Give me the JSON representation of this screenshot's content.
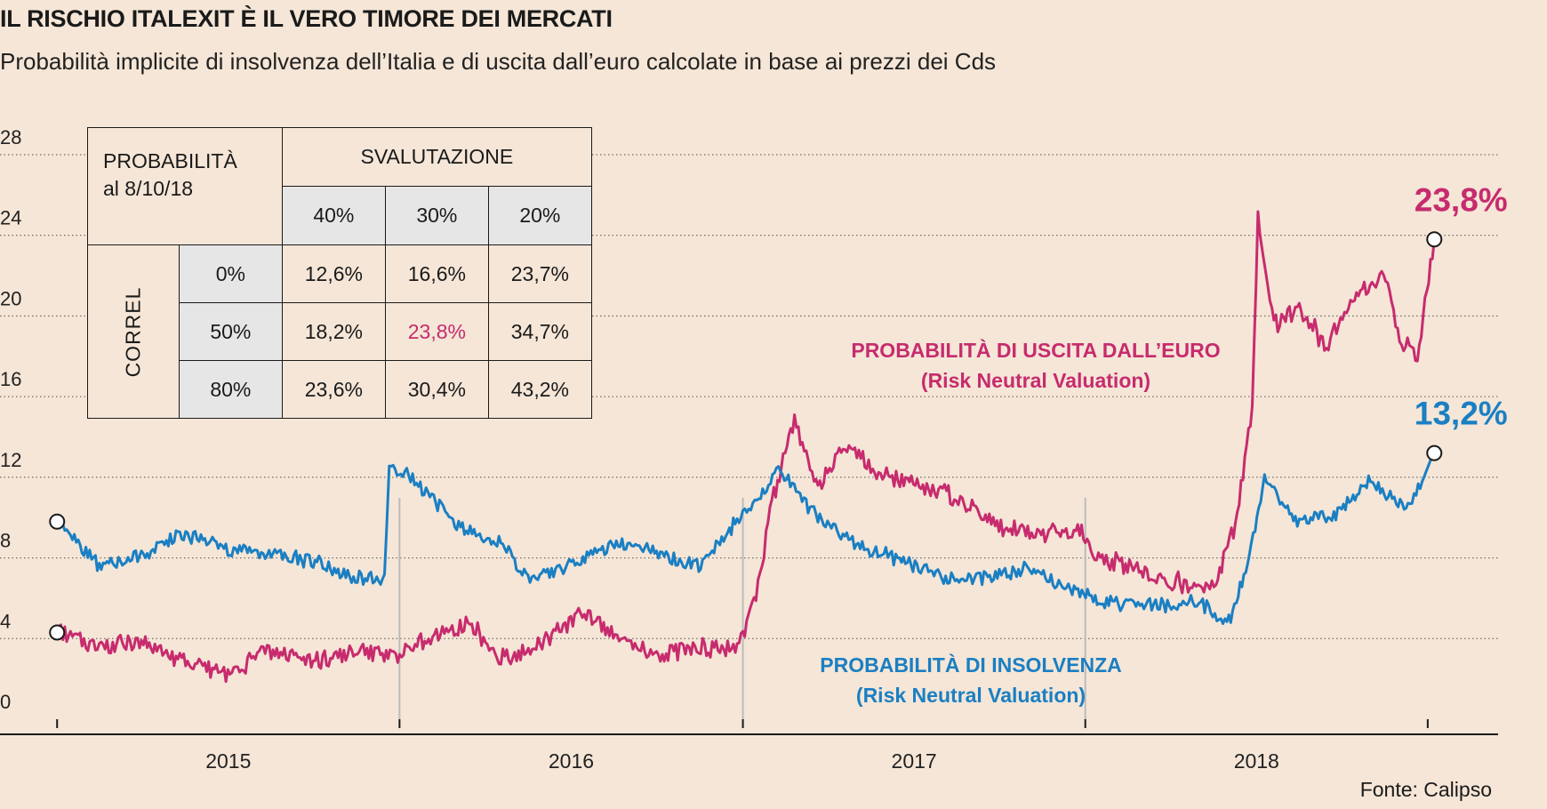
{
  "header": {
    "title": "IL RISCHIO ITALEXIT È IL VERO TIMORE DEI MERCATI",
    "subtitle": "Probabilità implicite di insolvenza dell’Italia e di uscita dall’euro calcolate in base ai prezzi dei Cds"
  },
  "source": "Fonte: Calipso",
  "table": {
    "corner_line1": "PROBABILITÀ",
    "corner_line2": "al 8/10/18",
    "group_header": "SVALUTAZIONE",
    "col_headers": [
      "40%",
      "30%",
      "20%"
    ],
    "row_group": "CORREL",
    "rows": [
      {
        "label": "0%",
        "values": [
          "12,6%",
          "16,6%",
          "23,7%"
        ]
      },
      {
        "label": "50%",
        "values": [
          "18,2%",
          "23,8%",
          "34,7%"
        ]
      },
      {
        "label": "80%",
        "values": [
          "23,6%",
          "30,4%",
          "43,2%"
        ]
      }
    ],
    "highlight_color": "#c72b6e"
  },
  "colors": {
    "exit": "#c72b6e",
    "default": "#1a7fc3",
    "background": "#f5e6d7"
  },
  "chart_data": {
    "type": "line",
    "x_axis": {
      "ticks": [
        "2015",
        "2016",
        "2017",
        "2018"
      ]
    },
    "y_axis": {
      "ticks": [
        "0",
        "4",
        "8",
        "12",
        "16",
        "20",
        "24",
        "28"
      ],
      "range": [
        0,
        28
      ]
    },
    "grid": "horizontal dotted",
    "series": [
      {
        "name": "PROBABILITÀ DI USCITA DALL’EURO",
        "name_line2": "(Risk Neutral Valuation)",
        "color": "#c72b6e",
        "end_label": "23,8%",
        "points": [
          [
            "2014-10-01",
            4.3
          ],
          [
            "2014-11-15",
            3.6
          ],
          [
            "2015-01-01",
            3.8
          ],
          [
            "2015-02-15",
            2.8
          ],
          [
            "2015-04-01",
            2.3
          ],
          [
            "2015-05-15",
            3.5
          ],
          [
            "2015-07-01",
            2.8
          ],
          [
            "2015-08-15",
            3.4
          ],
          [
            "2015-09-25",
            3.2
          ],
          [
            "2015-11-01",
            4.0
          ],
          [
            "2015-12-15",
            4.8
          ],
          [
            "2016-01-15",
            3.0
          ],
          [
            "2016-03-01",
            3.8
          ],
          [
            "2016-04-15",
            5.4
          ],
          [
            "2016-05-20",
            4.0
          ],
          [
            "2016-07-01",
            3.3
          ],
          [
            "2016-08-15",
            3.5
          ],
          [
            "2016-09-25",
            3.6
          ],
          [
            "2016-10-15",
            6.0
          ],
          [
            "2016-11-01",
            10.8
          ],
          [
            "2016-11-25",
            14.8
          ],
          [
            "2016-12-20",
            11.5
          ],
          [
            "2017-01-20",
            13.5
          ],
          [
            "2017-03-01",
            12.0
          ],
          [
            "2017-04-15",
            11.5
          ],
          [
            "2017-05-25",
            10.8
          ],
          [
            "2017-07-01",
            9.6
          ],
          [
            "2017-08-15",
            9.2
          ],
          [
            "2017-09-25",
            9.3
          ],
          [
            "2017-10-15",
            8.0
          ],
          [
            "2017-11-15",
            7.6
          ],
          [
            "2017-12-20",
            7.0
          ],
          [
            "2018-01-25",
            6.6
          ],
          [
            "2018-02-15",
            6.7
          ],
          [
            "2018-03-10",
            9.5
          ],
          [
            "2018-03-28",
            15.5
          ],
          [
            "2018-04-03",
            25.0
          ],
          [
            "2018-04-20",
            19.5
          ],
          [
            "2018-05-15",
            20.5
          ],
          [
            "2018-06-15",
            18.5
          ],
          [
            "2018-07-15",
            21.0
          ],
          [
            "2018-08-15",
            22.0
          ],
          [
            "2018-09-01",
            19.0
          ],
          [
            "2018-09-20",
            18.0
          ],
          [
            "2018-10-08",
            23.8
          ]
        ]
      },
      {
        "name": "PROBABILITÀ DI INSOLVENZA",
        "name_line2": "(Risk Neutral Valuation)",
        "color": "#1a7fc3",
        "end_label": "13,2%",
        "points": [
          [
            "2014-10-01",
            9.8
          ],
          [
            "2014-11-15",
            7.6
          ],
          [
            "2015-01-01",
            8.2
          ],
          [
            "2015-02-15",
            9.2
          ],
          [
            "2015-04-01",
            8.4
          ],
          [
            "2015-05-15",
            8.2
          ],
          [
            "2015-07-01",
            7.8
          ],
          [
            "2015-08-15",
            7.0
          ],
          [
            "2015-09-15",
            6.9
          ],
          [
            "2015-09-20",
            12.5
          ],
          [
            "2015-10-15",
            12.0
          ],
          [
            "2015-12-01",
            9.6
          ],
          [
            "2016-01-15",
            8.8
          ],
          [
            "2016-02-15",
            7.0
          ],
          [
            "2016-04-01",
            7.6
          ],
          [
            "2016-05-15",
            8.8
          ],
          [
            "2016-07-01",
            8.2
          ],
          [
            "2016-08-15",
            7.6
          ],
          [
            "2016-10-01",
            10.2
          ],
          [
            "2016-11-10",
            12.3
          ],
          [
            "2016-12-20",
            10.0
          ],
          [
            "2017-02-01",
            8.5
          ],
          [
            "2017-03-15",
            8.0
          ],
          [
            "2017-05-01",
            7.0
          ],
          [
            "2017-06-15",
            7.0
          ],
          [
            "2017-08-01",
            7.5
          ],
          [
            "2017-09-15",
            6.4
          ],
          [
            "2017-11-01",
            5.8
          ],
          [
            "2017-12-15",
            5.6
          ],
          [
            "2018-02-01",
            5.8
          ],
          [
            "2018-03-01",
            4.6
          ],
          [
            "2018-03-25",
            8.0
          ],
          [
            "2018-04-10",
            12.0
          ],
          [
            "2018-05-15",
            9.8
          ],
          [
            "2018-06-25",
            10.2
          ],
          [
            "2018-08-01",
            11.8
          ],
          [
            "2018-09-10",
            10.5
          ],
          [
            "2018-10-08",
            13.2
          ]
        ]
      }
    ]
  }
}
